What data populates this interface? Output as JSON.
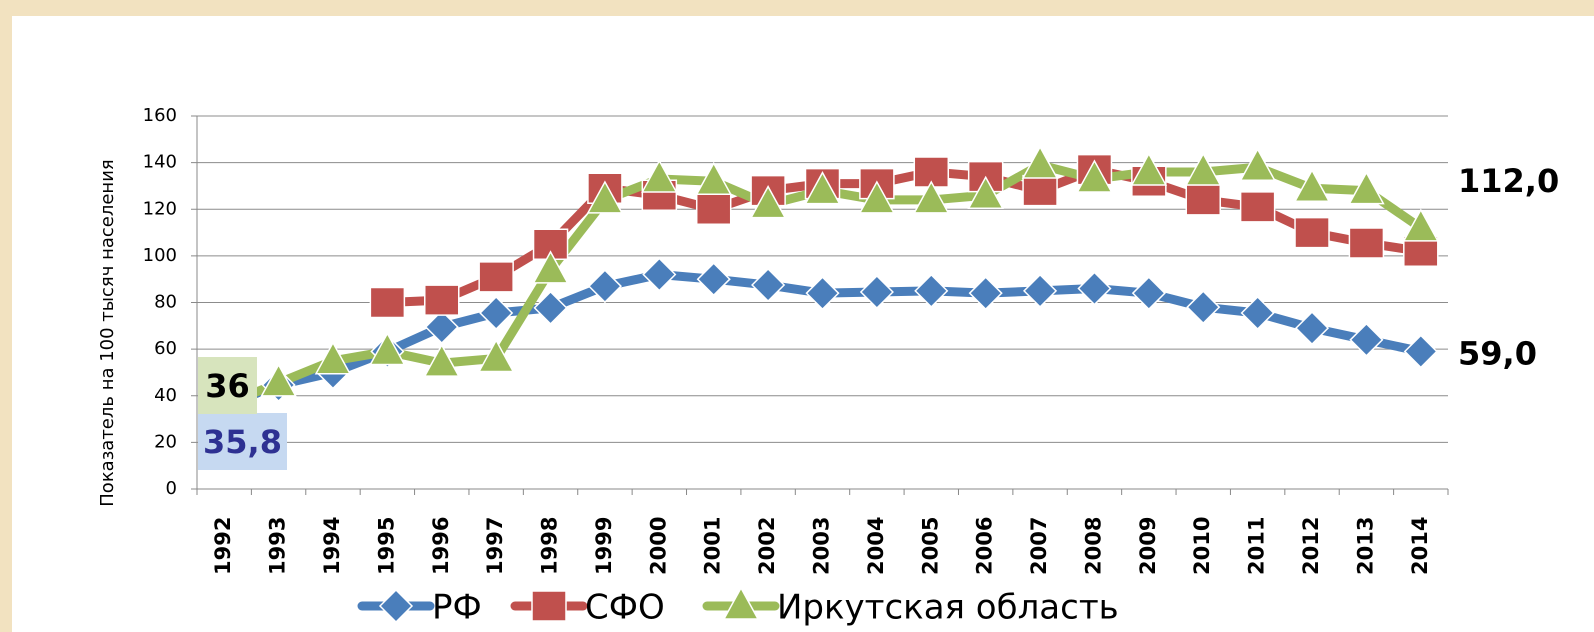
{
  "chart_data": {
    "type": "line",
    "y_label": "Показатель на 100 тысяч населения",
    "categories": [
      "1992",
      "1993",
      "1994",
      "1995",
      "1996",
      "1997",
      "1998",
      "1999",
      "2000",
      "2001",
      "2002",
      "2003",
      "2004",
      "2005",
      "2006",
      "2007",
      "2008",
      "2009",
      "2010",
      "2011",
      "2012",
      "2013",
      "2014"
    ],
    "series": [
      {
        "name": "РФ",
        "color": "#4a7ebb",
        "marker": "diamond",
        "values": [
          35.8,
          44.6,
          50,
          59,
          69.5,
          75.5,
          77.7,
          87,
          92,
          90,
          87.5,
          84,
          84.5,
          85,
          84,
          85,
          86,
          84,
          78,
          75.5,
          69,
          64,
          59
        ],
        "value_labels": [
          "35,8",
          null,
          null,
          null,
          null,
          null,
          null,
          null,
          null,
          null,
          null,
          null,
          null,
          null,
          null,
          null,
          null,
          null,
          null,
          null,
          null,
          null,
          "59,0"
        ]
      },
      {
        "name": "СФО",
        "color": "#c0504d",
        "marker": "square",
        "values": [
          null,
          null,
          null,
          80,
          81,
          91,
          105,
          129,
          126,
          120,
          128,
          131,
          131,
          136,
          134,
          128,
          137,
          132,
          124,
          121,
          110,
          105.5,
          102
        ]
      },
      {
        "name": "Иркутская область",
        "color": "#9bbb59",
        "marker": "triangle",
        "values": [
          36,
          45.5,
          55,
          59,
          54,
          56,
          94,
          124,
          133,
          132,
          122,
          128,
          124,
          124,
          126,
          139,
          133,
          136,
          136,
          138,
          129,
          128,
          112
        ],
        "value_labels": [
          "36",
          null,
          null,
          null,
          null,
          null,
          null,
          null,
          null,
          null,
          null,
          null,
          null,
          null,
          null,
          null,
          null,
          null,
          null,
          null,
          null,
          null,
          "112,0"
        ]
      }
    ],
    "ylim": [
      0,
      160
    ],
    "yticks": [
      0,
      20,
      40,
      60,
      80,
      100,
      120,
      140,
      160
    ],
    "grid": true,
    "legend": "bottom"
  }
}
